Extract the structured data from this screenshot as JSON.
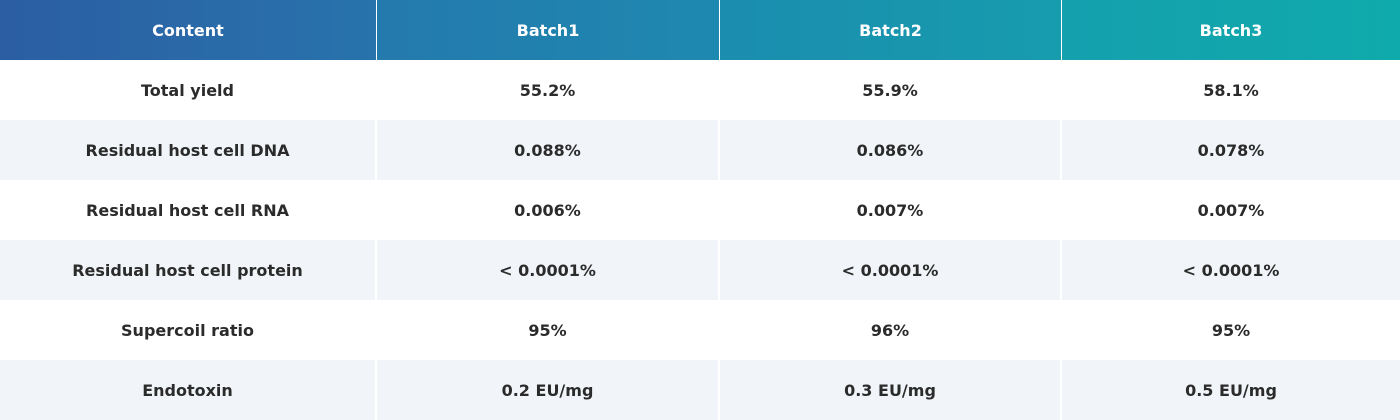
{
  "table": {
    "headers": [
      "Content",
      "Batch1",
      "Batch2",
      "Batch3"
    ],
    "rows": [
      [
        "Total yield",
        "55.2%",
        "55.9%",
        "58.1%"
      ],
      [
        "Residual host cell DNA",
        "0.088%",
        "0.086%",
        "0.078%"
      ],
      [
        "Residual host cell RNA",
        "0.006%",
        "0.007%",
        "0.007%"
      ],
      [
        "Residual host cell protein",
        "< 0.0001%",
        "< 0.0001%",
        "< 0.0001%"
      ],
      [
        "Supercoil ratio",
        "95%",
        "96%",
        "95%"
      ],
      [
        "Endotoxin",
        "0.2 EU/mg",
        "0.3 EU/mg",
        "0.5 EU/mg"
      ]
    ]
  },
  "colors": {
    "header_start": "#2b5ea3",
    "header_end": "#0faaab",
    "row_alt": "#f1f5f9",
    "text": "#2b2b2b"
  }
}
